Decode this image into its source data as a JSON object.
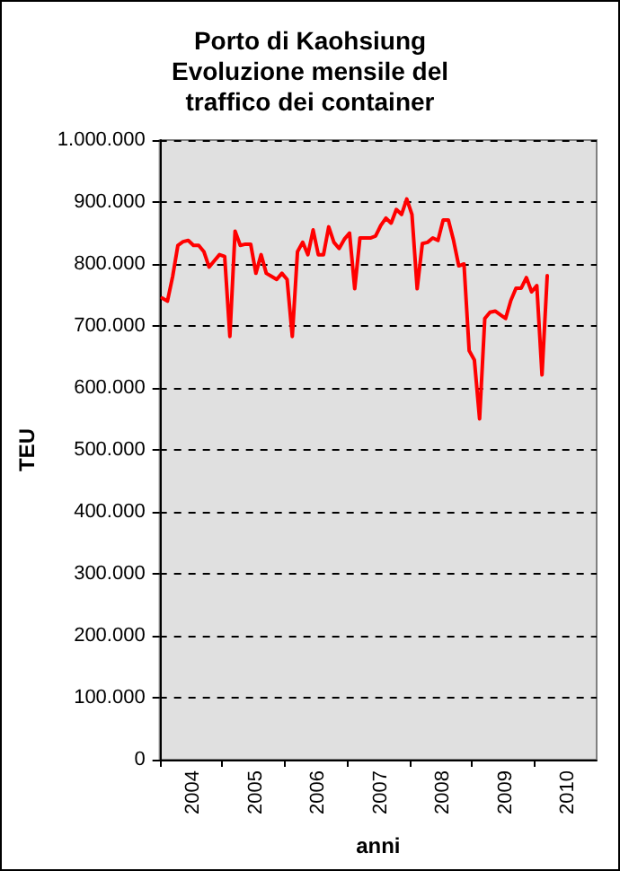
{
  "chart_data": {
    "type": "line",
    "title": "Porto di Kaohsiung\nEvoluzione mensile del\ntraffico dei container",
    "xlabel": "anni",
    "ylabel": "TEU",
    "categories": [
      null,
      null,
      null,
      null,
      null,
      null,
      "2004",
      null,
      null,
      null,
      null,
      null,
      null,
      null,
      null,
      null,
      null,
      null,
      "2005",
      null,
      null,
      null,
      null,
      null,
      null,
      null,
      null,
      null,
      null,
      null,
      "2006",
      null,
      null,
      null,
      null,
      null,
      null,
      null,
      null,
      null,
      null,
      null,
      "2007",
      null,
      null,
      null,
      null,
      null,
      null,
      null,
      null,
      null,
      null,
      null,
      "2008",
      null,
      null,
      null,
      null,
      null,
      null,
      null,
      null,
      null,
      null,
      null,
      "2009",
      null,
      null,
      null,
      null,
      null,
      null,
      null,
      null,
      null,
      null,
      null,
      "2010",
      null,
      null,
      null,
      null,
      null
    ],
    "series": [
      {
        "color": "#ff0000",
        "values": [
          745000,
          740000,
          780000,
          830000,
          836000,
          838000,
          830000,
          830000,
          820000,
          795000,
          805000,
          815000,
          812000,
          683000,
          853000,
          830000,
          832000,
          832000,
          785000,
          815000,
          785000,
          780000,
          775000,
          785000,
          775000,
          683000,
          820000,
          835000,
          815000,
          855000,
          815000,
          815000,
          860000,
          835000,
          825000,
          840000,
          850000,
          760000,
          842000,
          842000,
          842000,
          845000,
          862000,
          874000,
          866000,
          888000,
          880000,
          905000,
          880000,
          760000,
          833000,
          835000,
          842000,
          838000,
          871000,
          871000,
          838000,
          797000,
          800000,
          660000,
          645000,
          550000,
          712000,
          722000,
          724000,
          718000,
          712000,
          741000,
          761000,
          761000,
          778000,
          755000,
          765000,
          621000,
          781000,
          null,
          null,
          null,
          null,
          null,
          null,
          null,
          null,
          null
        ]
      }
    ],
    "ylim": [
      0,
      1000000
    ],
    "yticks": [
      {
        "value": 0,
        "label": "0"
      },
      {
        "value": 100000,
        "label": "100.000"
      },
      {
        "value": 200000,
        "label": "200.000"
      },
      {
        "value": 300000,
        "label": "300.000"
      },
      {
        "value": 400000,
        "label": "400.000"
      },
      {
        "value": 500000,
        "label": "500.000"
      },
      {
        "value": 600000,
        "label": "600.000"
      },
      {
        "value": 700000,
        "label": "700.000"
      },
      {
        "value": 800000,
        "label": "800.000"
      },
      {
        "value": 900000,
        "label": "900.000"
      },
      {
        "value": 1000000,
        "label": "1.000.000"
      }
    ],
    "grid": "y",
    "marker": "none",
    "line_style": "solid"
  }
}
